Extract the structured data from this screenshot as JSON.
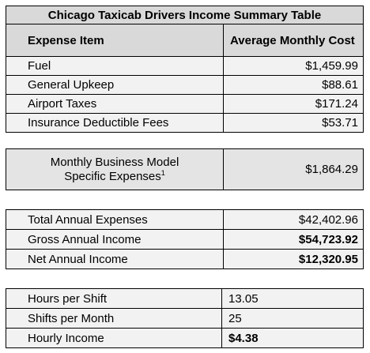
{
  "title": "Chicago Taxicab Drivers Income Summary Table",
  "header": {
    "item": "Expense Item",
    "cost": "Average Monthly Cost"
  },
  "expenses": [
    [
      "Fuel",
      "$1,459.99"
    ],
    [
      "General Upkeep",
      "$88.61"
    ],
    [
      "Airport Taxes",
      "$171.24"
    ],
    [
      "Insurance Deductible Fees",
      "$53.71"
    ]
  ],
  "business_model": {
    "label": "Monthly Business Model Specific Expenses",
    "footnote": "1",
    "value": "$1,864.29"
  },
  "annual": [
    [
      "Total Annual Expenses",
      "$42,402.96"
    ],
    [
      "Gross Annual Income",
      "$54,723.92"
    ],
    [
      "Net Annual Income",
      "$12,320.95"
    ]
  ],
  "shift": [
    [
      "Hours per Shift",
      "13.05"
    ],
    [
      "Shifts per Month",
      "25"
    ],
    [
      "Hourly Income",
      "$4.38"
    ]
  ]
}
